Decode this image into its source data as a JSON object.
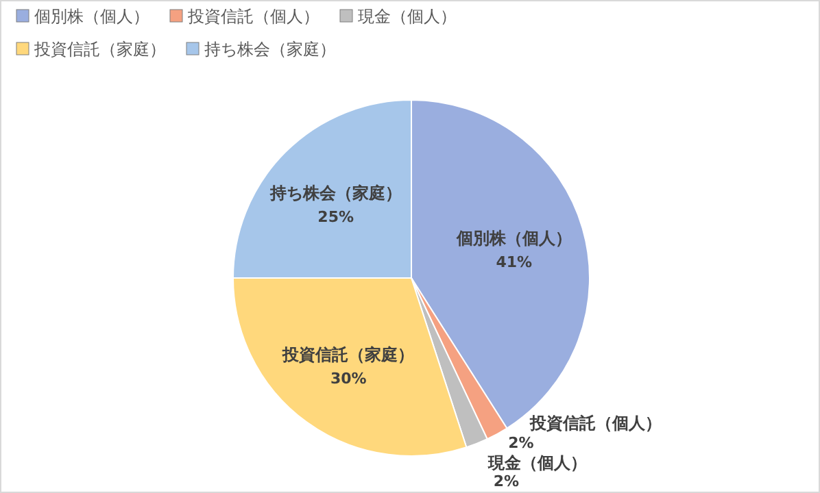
{
  "chart_data": {
    "type": "pie",
    "categories": [
      "個別株（個人）",
      "投資信託（個人）",
      "現金（個人）",
      "投資信託（家庭）",
      "持ち株会（家庭）"
    ],
    "values": [
      41,
      2,
      2,
      30,
      25
    ],
    "colors": [
      "#9aaedf",
      "#f5a181",
      "#bfbfbf",
      "#ffd87c",
      "#a6c6ea"
    ],
    "value_labels": [
      "41%",
      "2%",
      "2%",
      "30%",
      "25%"
    ],
    "legend": "top left"
  }
}
